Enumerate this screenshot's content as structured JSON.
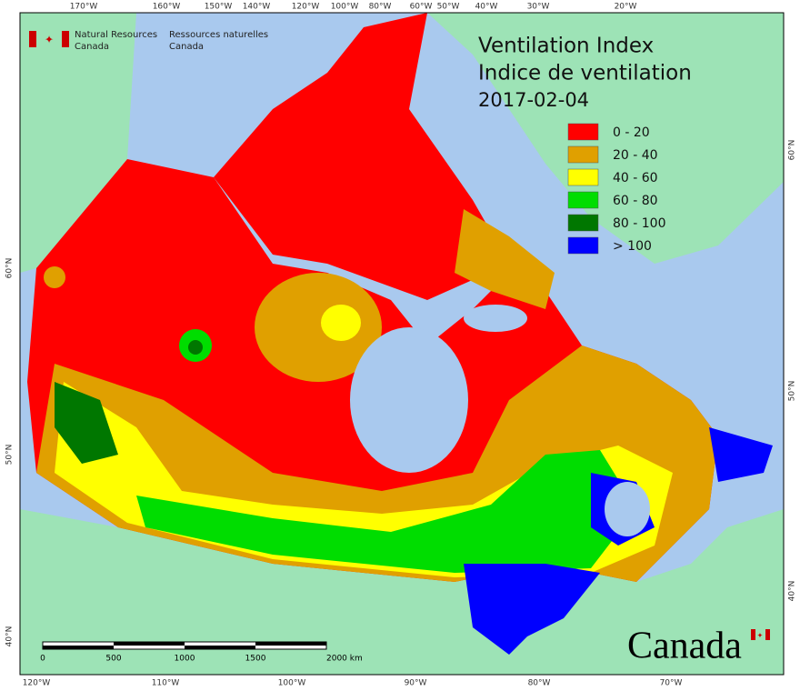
{
  "agency": {
    "en_line1": "Natural Resources",
    "en_line2": "Canada",
    "fr_line1": "Ressources naturelles",
    "fr_line2": "Canada"
  },
  "title": {
    "en": "Ventilation Index",
    "fr": "Indice de ventilation",
    "date": "2017-02-04"
  },
  "legend": [
    {
      "label": "0 - 20",
      "color": "#ff0000"
    },
    {
      "label": "20 - 40",
      "color": "#e0a000"
    },
    {
      "label": "40 - 60",
      "color": "#ffff00"
    },
    {
      "label": "60 - 80",
      "color": "#00dd00"
    },
    {
      "label": "80 - 100",
      "color": "#007700"
    },
    {
      "label": "> 100",
      "color": "#0000ff"
    }
  ],
  "graticule": {
    "top": [
      "170°W",
      "160°W",
      "150°W",
      "140°W",
      "120°W",
      "100°W",
      "80°W",
      "60°W",
      "50°W",
      "40°W",
      "30°W",
      "20°W"
    ],
    "bottom": [
      "120°W",
      "110°W",
      "100°W",
      "90°W",
      "80°W",
      "70°W"
    ],
    "left": [
      "60°N",
      "50°N",
      "40°N"
    ],
    "right": [
      "60°N",
      "50°N",
      "40°N"
    ]
  },
  "scale_bar": {
    "labels": [
      "0",
      "500",
      "1000",
      "1500",
      "2000 km"
    ]
  },
  "wordmark": "Canada"
}
